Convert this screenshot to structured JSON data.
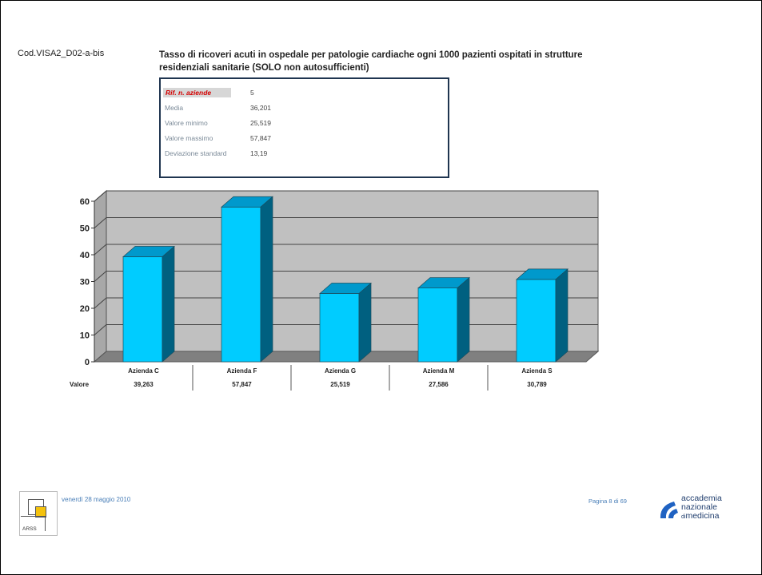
{
  "code": "Cod.VISA2_D02-a-bis",
  "title_line1": "Tasso di ricoveri acuti in ospedale per patologie cardiache ogni 1000 pazienti ospitati in strutture",
  "title_line2": "residenziali sanitarie (SOLO non autosufficienti)",
  "stats": [
    {
      "label": "Rif. n. aziende",
      "value": "5"
    },
    {
      "label": "Media",
      "value": "36,201"
    },
    {
      "label": "Valore minimo",
      "value": "25,519"
    },
    {
      "label": "Valore massimo",
      "value": "57,847"
    },
    {
      "label": "Deviazione standard",
      "value": "13,19"
    }
  ],
  "chart_data": {
    "type": "bar",
    "categories": [
      "Azienda C",
      "Azienda F",
      "Azienda G",
      "Azienda M",
      "Azienda S"
    ],
    "values": [
      39.263,
      57.847,
      25.519,
      27.586,
      30.789
    ],
    "value_labels": [
      "39,263",
      "57,847",
      "25,519",
      "27,586",
      "30,789"
    ],
    "row_label": "Valore",
    "ylim": [
      0,
      60
    ],
    "yticks": [
      0,
      10,
      20,
      30,
      40,
      50,
      60
    ],
    "grid": true,
    "colors": {
      "front": "#00ccff",
      "top": "#0099cc",
      "side": "#006080",
      "wall": "#c0c0c0",
      "floor": "#808080"
    }
  },
  "footer": {
    "date": "venerdì 28 maggio 2010",
    "page": "Pagina 8 di 69"
  },
  "logos": {
    "arss_text": "ARSS",
    "acc_line1": "accademia",
    "acc_line2": "nazionale",
    "acc_line3_prefix": "di",
    "acc_line3": "medicina"
  }
}
